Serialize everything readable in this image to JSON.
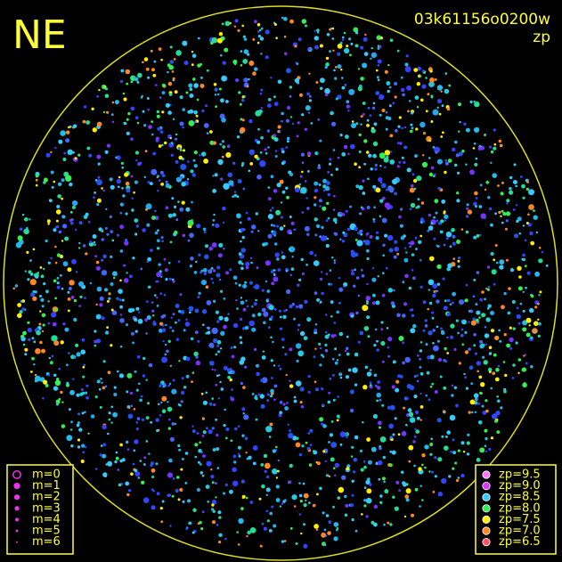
{
  "header": {
    "corner_label": "NE",
    "image_id": "03k61156o0200w",
    "mode": "zp"
  },
  "magnitude_legend": {
    "entries": [
      "m=0",
      "m=1",
      "m=2",
      "m=3",
      "m=4",
      "m=5",
      "m=6"
    ]
  },
  "zp_legend": {
    "entries": [
      {
        "label": "zp=9.5",
        "color": "#ff77ff"
      },
      {
        "label": "zp=9.0",
        "color": "#dd33ff"
      },
      {
        "label": "zp=8.5",
        "color": "#33ccff"
      },
      {
        "label": "zp=8.0",
        "color": "#33ee55"
      },
      {
        "label": "zp=7.5",
        "color": "#ffee00"
      },
      {
        "label": "zp=7.0",
        "color": "#ff8822"
      },
      {
        "label": "zp=6.5",
        "color": "#ff5566"
      }
    ]
  }
}
